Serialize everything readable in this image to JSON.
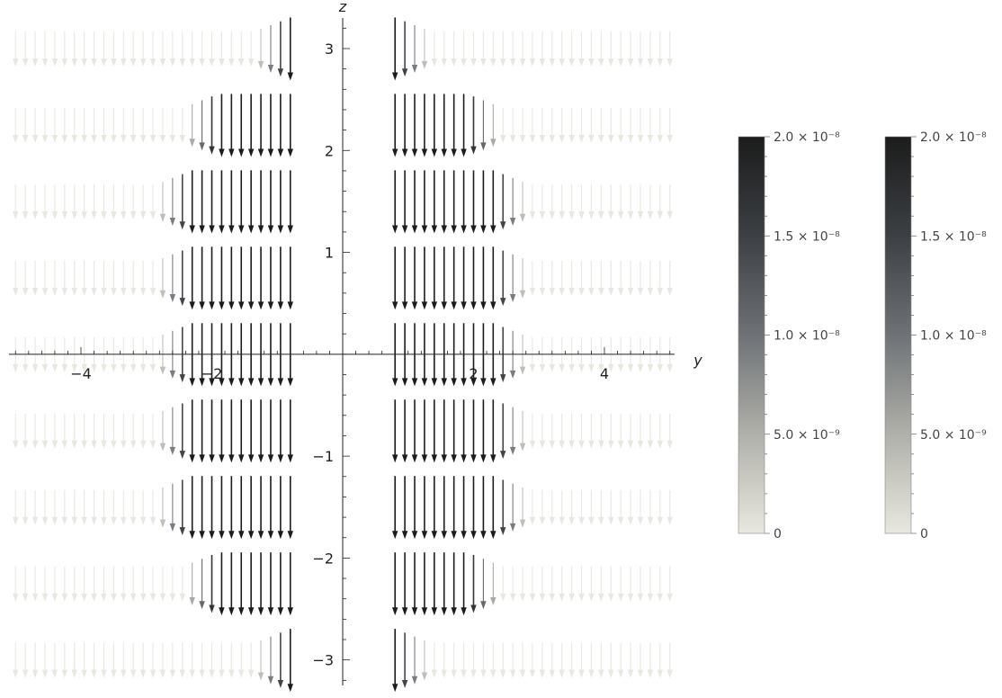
{
  "chart_data": {
    "type": "vector-field",
    "xlabel": "y",
    "ylabel": "z",
    "xlim": [
      -5.1,
      5.1
    ],
    "ylim": [
      -3.25,
      3.3
    ],
    "x_ticks": [
      {
        "v": -4,
        "label": "−4"
      },
      {
        "v": -2,
        "label": "−2"
      },
      {
        "v": 2,
        "label": "2"
      },
      {
        "v": 4,
        "label": "4"
      }
    ],
    "y_ticks": [
      {
        "v": -3,
        "label": "−3"
      },
      {
        "v": -2,
        "label": "−2"
      },
      {
        "v": -1,
        "label": "−1"
      },
      {
        "v": 1,
        "label": "1"
      },
      {
        "v": 2,
        "label": "2"
      },
      {
        "v": 3,
        "label": "3"
      }
    ],
    "field": {
      "direction": "down",
      "rows_z": [
        3,
        2.25,
        1.5,
        0.75,
        0,
        -0.75,
        -1.5,
        -2.25,
        -3
      ],
      "row_extent": [
        0.8,
        1.9,
        2.3,
        2.3,
        2.3,
        2.3,
        2.3,
        1.9,
        0.8
      ],
      "arrow_columns_abs_y": [
        0.8,
        0.95,
        1.1,
        1.25,
        1.4,
        1.55,
        1.7,
        1.85,
        2.0,
        2.15,
        2.3,
        2.45,
        2.6,
        2.75,
        2.9,
        3.05,
        3.2,
        3.35,
        3.5,
        3.65,
        3.8,
        3.95,
        4.1,
        4.25,
        4.4,
        4.55,
        4.7,
        4.85,
        5.0
      ],
      "magnitude_max": 2e-08
    },
    "colorbars": [
      {
        "range": [
          0,
          2e-08
        ],
        "gradient": [
          "#e8e8e0",
          "#b0b0aa",
          "#6e7276",
          "#3c4044",
          "#1c1c1c"
        ],
        "ticks": [
          {
            "v": 0,
            "label": "0"
          },
          {
            "v": 5e-09,
            "label": "5.0 × 10⁻⁹"
          },
          {
            "v": 1e-08,
            "label": "1.0 × 10⁻⁸"
          },
          {
            "v": 1.5e-08,
            "label": "1.5 × 10⁻⁸"
          },
          {
            "v": 2e-08,
            "label": "2.0 × 10⁻⁸"
          }
        ]
      },
      {
        "range": [
          0,
          2e-08
        ],
        "gradient": [
          "#e8e8e0",
          "#b0b0aa",
          "#6e7276",
          "#3c4044",
          "#1c1c1c"
        ],
        "ticks": [
          {
            "v": 0,
            "label": "0"
          },
          {
            "v": 5e-09,
            "label": "5.0 × 10⁻⁹"
          },
          {
            "v": 1e-08,
            "label": "1.0 × 10⁻⁸"
          },
          {
            "v": 1.5e-08,
            "label": "1.5 × 10⁻⁸"
          },
          {
            "v": 2e-08,
            "label": "2.0 × 10⁻⁸"
          }
        ]
      }
    ]
  }
}
